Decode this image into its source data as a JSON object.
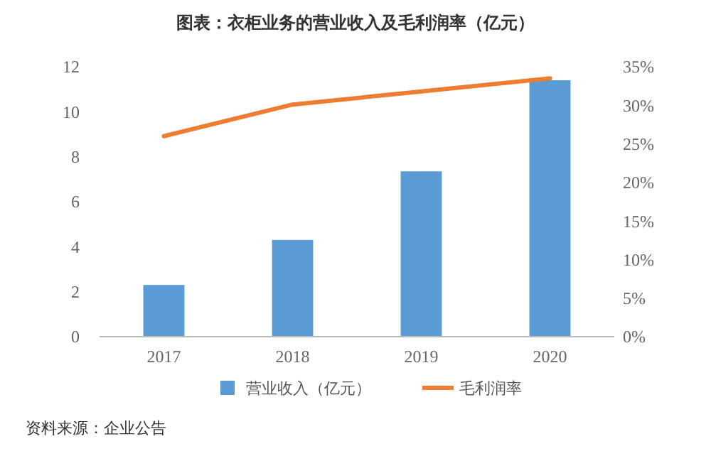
{
  "chart_data": {
    "type": "bar",
    "title": "图表：衣柜业务的营业收入及毛利润率（亿元）",
    "categories": [
      "2017",
      "2018",
      "2019",
      "2020"
    ],
    "series": [
      {
        "name": "营业收入（亿元）",
        "color": "#5b9bd5",
        "values": [
          2.3,
          4.3,
          7.35,
          11.4
        ]
      },
      {
        "name": "毛利润率",
        "type": "line",
        "axis": "y2",
        "color": "#ed7d31",
        "values": [
          26.0,
          30.1,
          31.8,
          33.5
        ]
      }
    ],
    "ylim": [
      0,
      12
    ],
    "yticks": [
      0,
      2,
      4,
      6,
      8,
      10,
      12
    ],
    "y2lim": [
      0,
      35
    ],
    "y2ticks": [
      {
        "value": 0,
        "label": "0%"
      },
      {
        "value": 5,
        "label": "5%"
      },
      {
        "value": 10,
        "label": "10%"
      },
      {
        "value": 15,
        "label": "15%"
      },
      {
        "value": 20,
        "label": "20%"
      },
      {
        "value": 25,
        "label": "25%"
      },
      {
        "value": 30,
        "label": "30%"
      },
      {
        "value": 35,
        "label": "35%"
      }
    ],
    "legend": "bottom",
    "marker": "none",
    "line_style": "solid",
    "annotations": [
      "资料来源：企业公告"
    ]
  }
}
